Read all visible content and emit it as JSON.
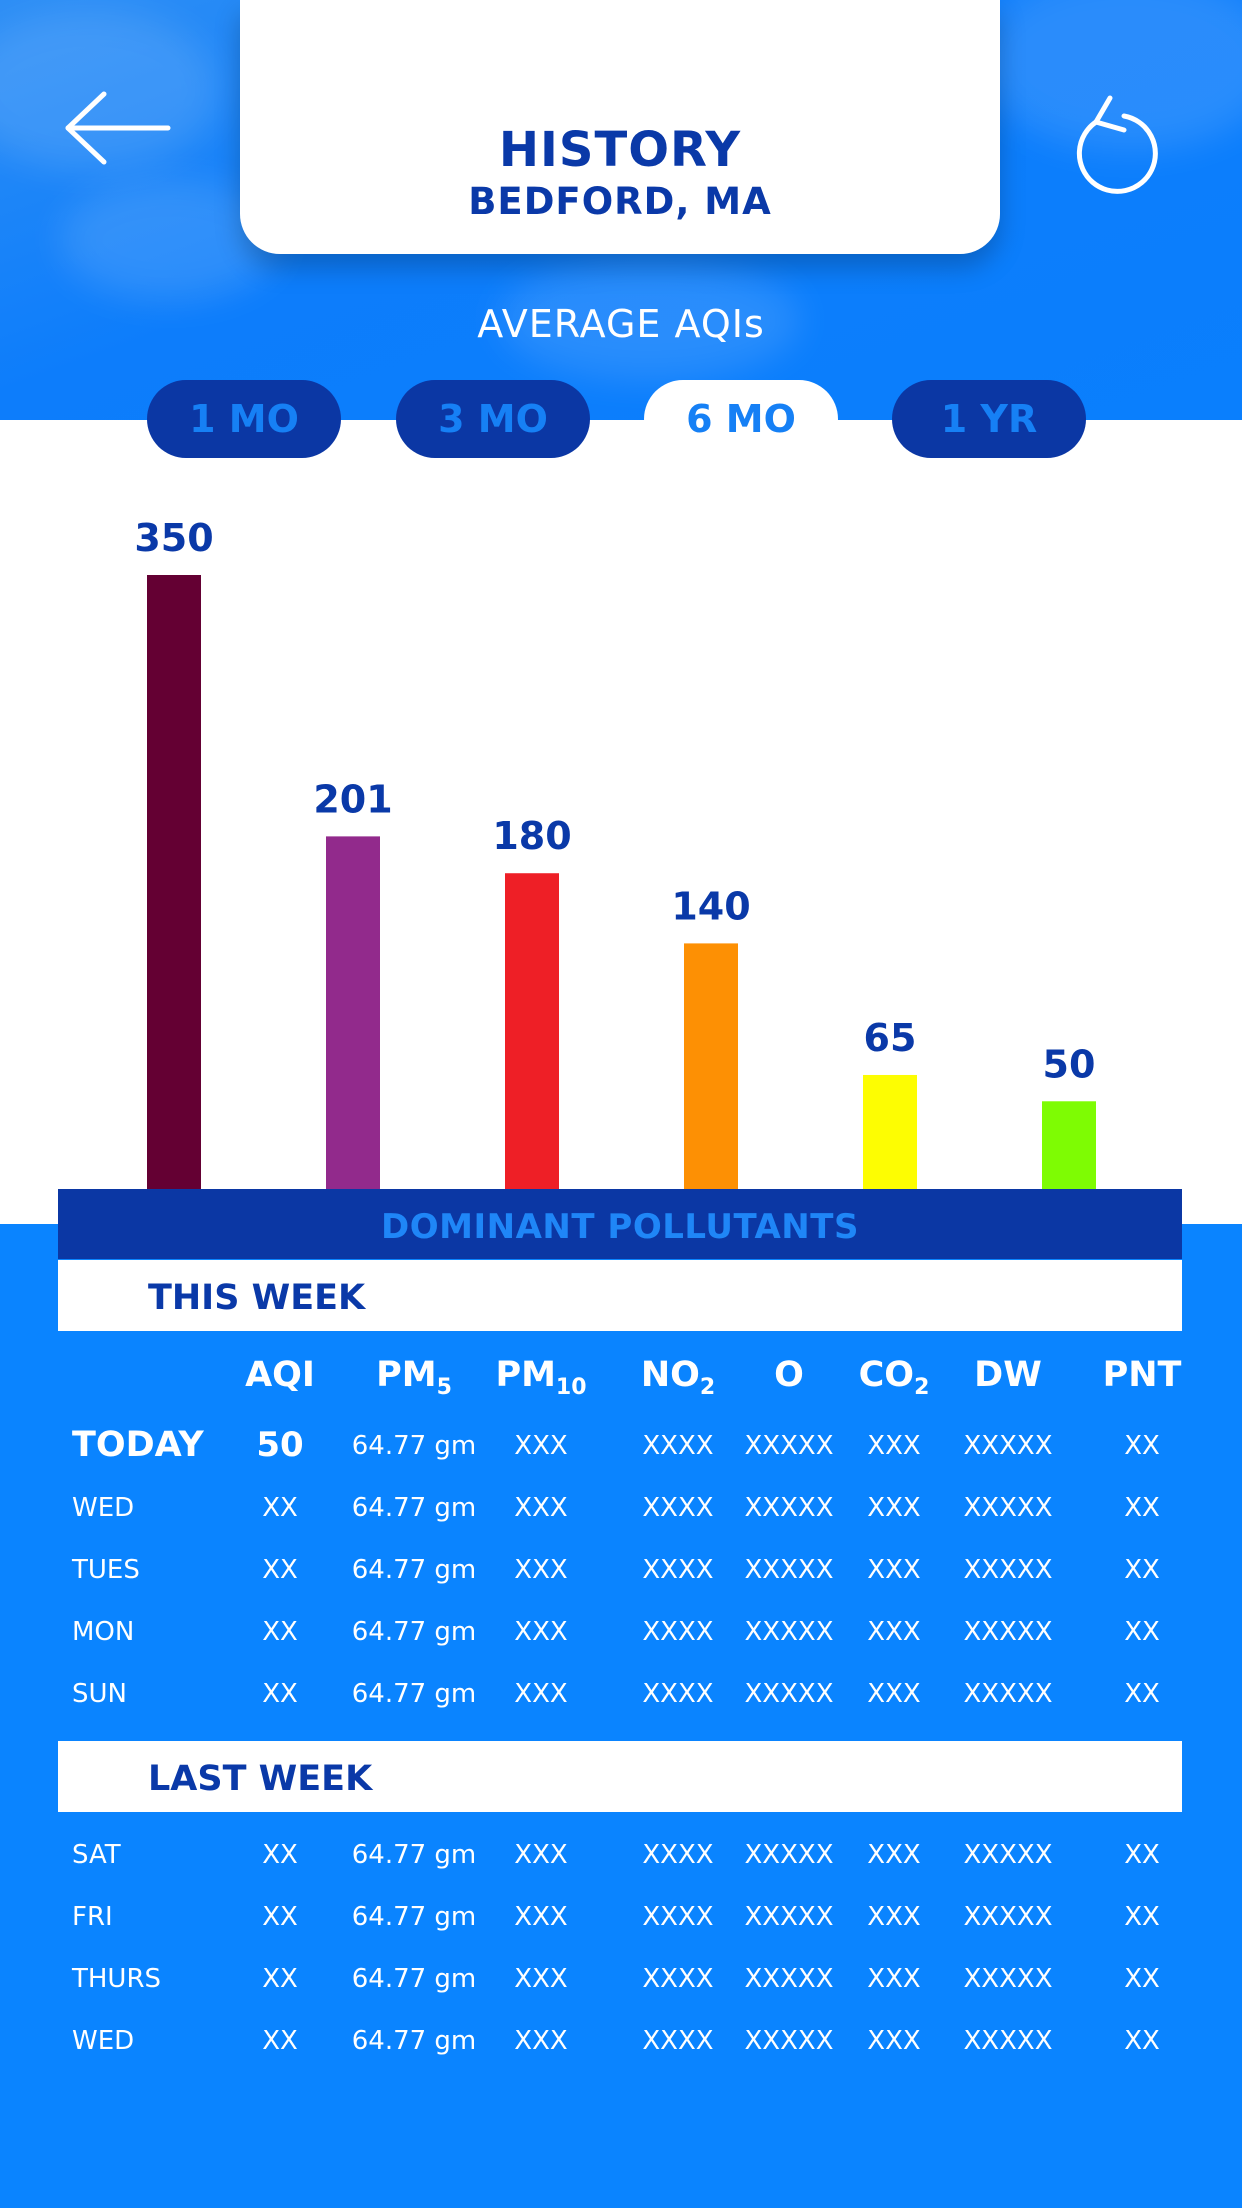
{
  "header": {
    "title": "HISTORY",
    "location": "BEDFORD, MA",
    "back_icon": "arrow-left-icon",
    "refresh_icon": "refresh-icon"
  },
  "chart_section": {
    "label": "AVERAGE AQIs",
    "tabs": [
      {
        "label": "1 MO",
        "active": false
      },
      {
        "label": "3 MO",
        "active": false
      },
      {
        "label": "6 MO",
        "active": true
      },
      {
        "label": "1 YR",
        "active": false
      }
    ]
  },
  "chart_data": {
    "type": "bar",
    "values": [
      350,
      201,
      180,
      140,
      65,
      50
    ],
    "data_labels": [
      "350",
      "201",
      "180",
      "140",
      "65",
      "50"
    ],
    "colors": [
      "#640033",
      "#922a8c",
      "#ee1f26",
      "#fd9004",
      "#fdfd02",
      "#7efc03"
    ],
    "ylim": [
      0,
      350
    ]
  },
  "pollutants": {
    "title": "DOMINANT POLLUTANTS",
    "columns": [
      "AQI",
      "PM5",
      "PM10",
      "NO2",
      "O",
      "CO2",
      "DW",
      "PNT"
    ],
    "this_week": {
      "label": "THIS WEEK",
      "rows": [
        {
          "day": "TODAY",
          "values": [
            "50",
            "64.77 gm",
            "XXX",
            "XXXX",
            "XXXXX",
            "XXX",
            "XXXXX",
            "XX"
          ]
        },
        {
          "day": "WED",
          "values": [
            "XX",
            "64.77 gm",
            "XXX",
            "XXXX",
            "XXXXX",
            "XXX",
            "XXXXX",
            "XX"
          ]
        },
        {
          "day": "TUES",
          "values": [
            "XX",
            "64.77 gm",
            "XXX",
            "XXXX",
            "XXXXX",
            "XXX",
            "XXXXX",
            "XX"
          ]
        },
        {
          "day": "MON",
          "values": [
            "XX",
            "64.77 gm",
            "XXX",
            "XXXX",
            "XXXXX",
            "XXX",
            "XXXXX",
            "XX"
          ]
        },
        {
          "day": "SUN",
          "values": [
            "XX",
            "64.77 gm",
            "XXX",
            "XXXX",
            "XXXXX",
            "XXX",
            "XXXXX",
            "XX"
          ]
        }
      ]
    },
    "last_week": {
      "label": "LAST WEEK",
      "rows": [
        {
          "day": "SAT",
          "values": [
            "XX",
            "64.77 gm",
            "XXX",
            "XXXX",
            "XXXXX",
            "XXX",
            "XXXXX",
            "XX"
          ]
        },
        {
          "day": "FRI",
          "values": [
            "XX",
            "64.77 gm",
            "XXX",
            "XXXX",
            "XXXXX",
            "XXX",
            "XXXXX",
            "XX"
          ]
        },
        {
          "day": "THURS",
          "values": [
            "XX",
            "64.77 gm",
            "XXX",
            "XXXX",
            "XXXXX",
            "XXX",
            "XXXXX",
            "XX"
          ]
        },
        {
          "day": "WED",
          "values": [
            "XX",
            "64.77 gm",
            "XXX",
            "XXXX",
            "XXXXX",
            "XXX",
            "XXXXX",
            "XX"
          ]
        }
      ]
    }
  },
  "colors": {
    "primary_blue": "#0a84ff",
    "dark_blue": "#0b37a4",
    "text_navy": "#0a39a8"
  }
}
